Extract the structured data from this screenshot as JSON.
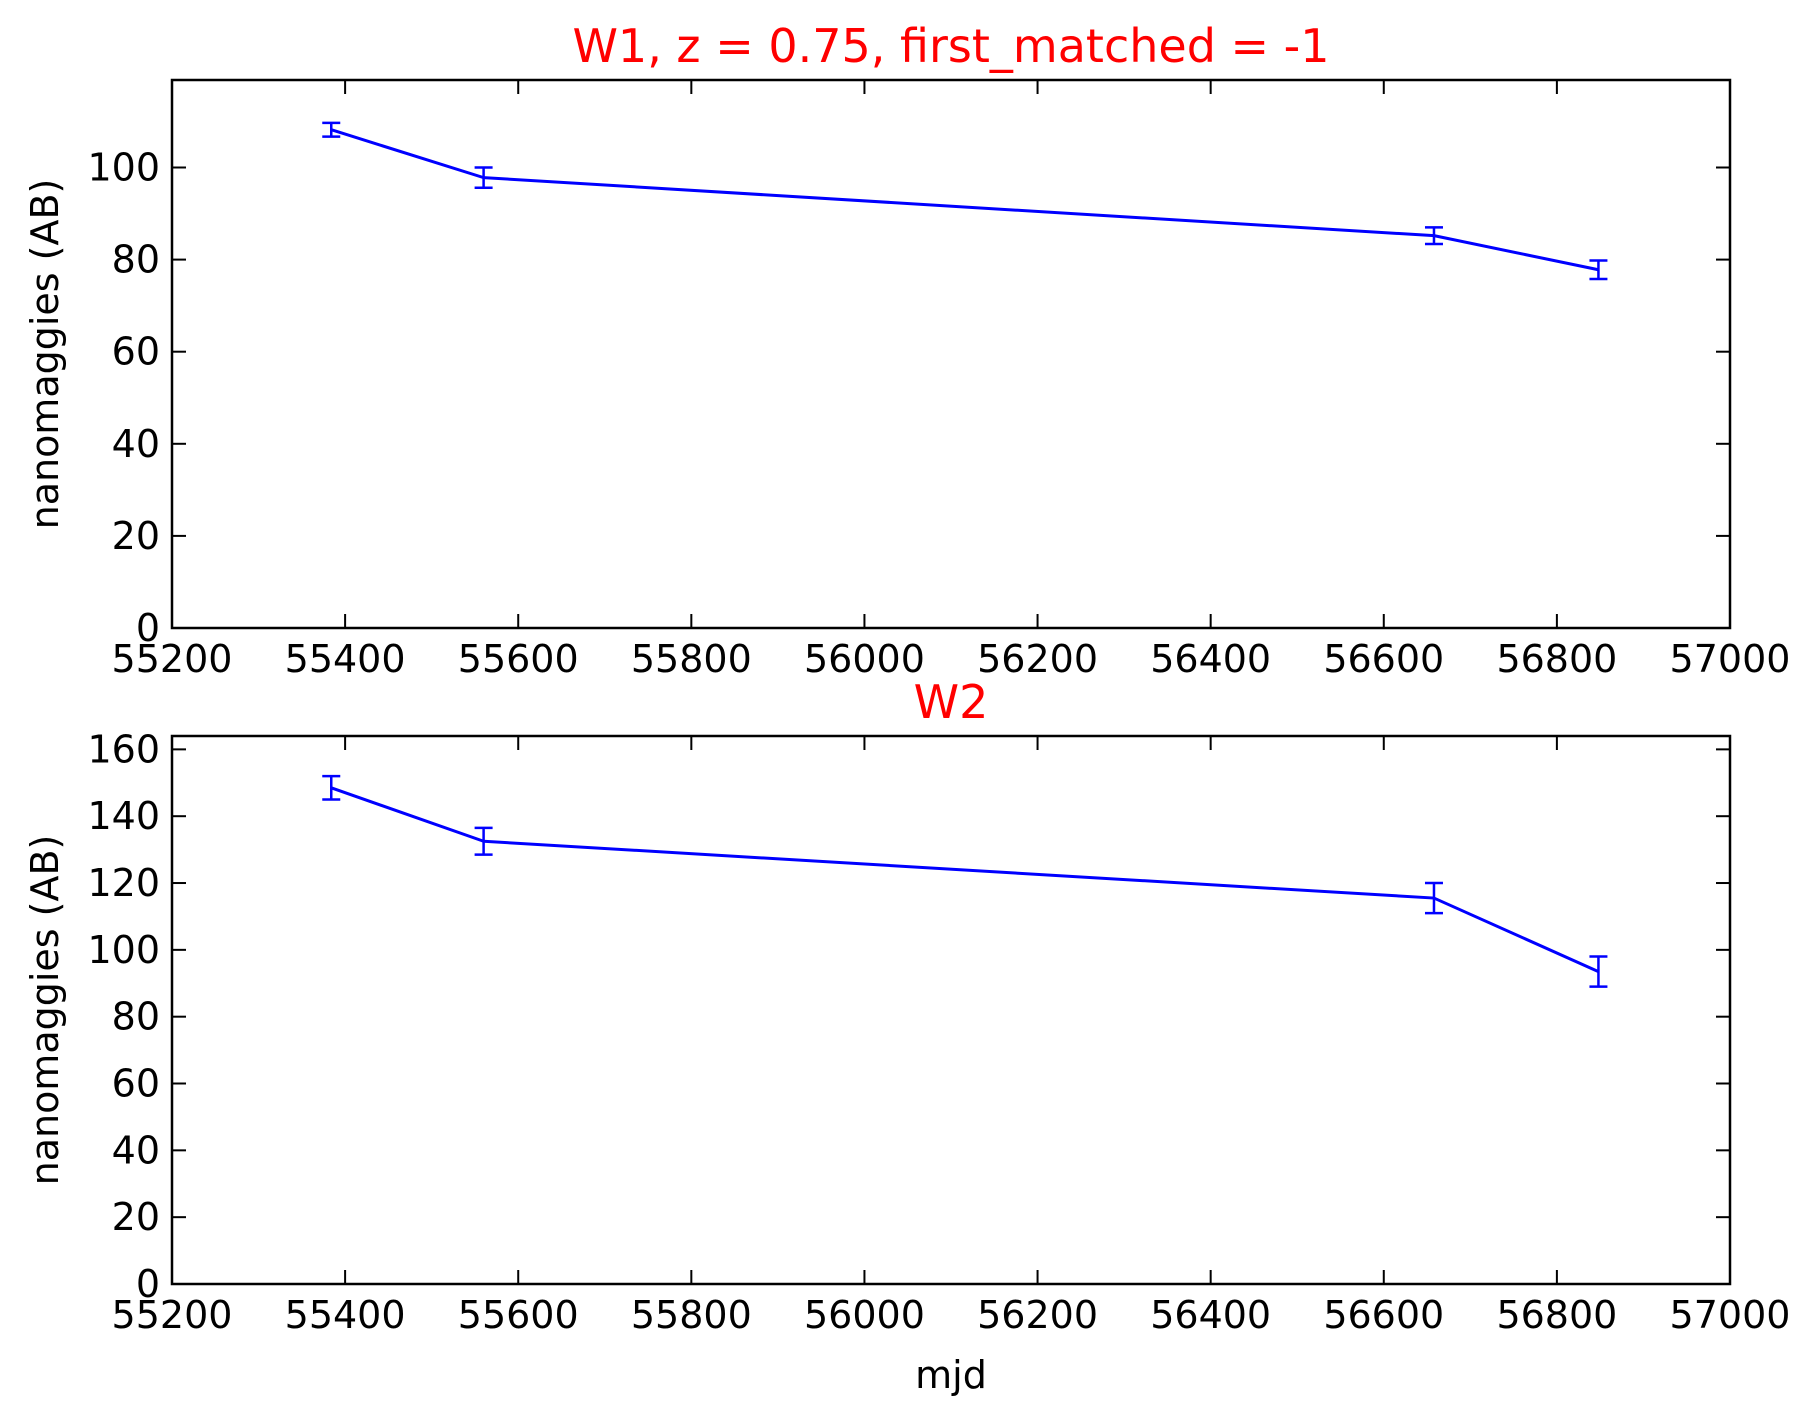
{
  "colors": {
    "title": "#ff0000",
    "series": "#0000ff",
    "axes": "#000000",
    "background": "#ffffff"
  },
  "chart_data": [
    {
      "type": "line",
      "title": "W1, z = 0.75, first_matched = -1",
      "xlabel": "",
      "ylabel": "nanomaggies (AB)",
      "xlim": [
        55200,
        57000
      ],
      "ylim": [
        0,
        119
      ],
      "xticks": [
        "55200",
        "55400",
        "55600",
        "55800",
        "56000",
        "56200",
        "56400",
        "56600",
        "56800",
        "57000"
      ],
      "yticks": [
        "0",
        "20",
        "40",
        "60",
        "80",
        "100"
      ],
      "grid": false,
      "error_bars": true,
      "x": [
        55384,
        55560,
        56658,
        56848
      ],
      "y": [
        108.2,
        97.8,
        85.2,
        77.8
      ],
      "yerr": [
        1.5,
        2.2,
        1.8,
        2.0
      ]
    },
    {
      "type": "line",
      "title": "W2",
      "xlabel": "mjd",
      "ylabel": "nanomaggies (AB)",
      "xlim": [
        55200,
        57000
      ],
      "ylim": [
        0,
        164
      ],
      "xticks": [
        "55200",
        "55400",
        "55600",
        "55800",
        "56000",
        "56200",
        "56400",
        "56600",
        "56800",
        "57000"
      ],
      "yticks": [
        "0",
        "20",
        "40",
        "60",
        "80",
        "100",
        "120",
        "140",
        "160"
      ],
      "grid": false,
      "error_bars": true,
      "x": [
        55384,
        55560,
        56658,
        56848
      ],
      "y": [
        148.5,
        132.5,
        115.5,
        93.5
      ],
      "yerr": [
        3.5,
        4.0,
        4.5,
        4.5
      ]
    }
  ]
}
